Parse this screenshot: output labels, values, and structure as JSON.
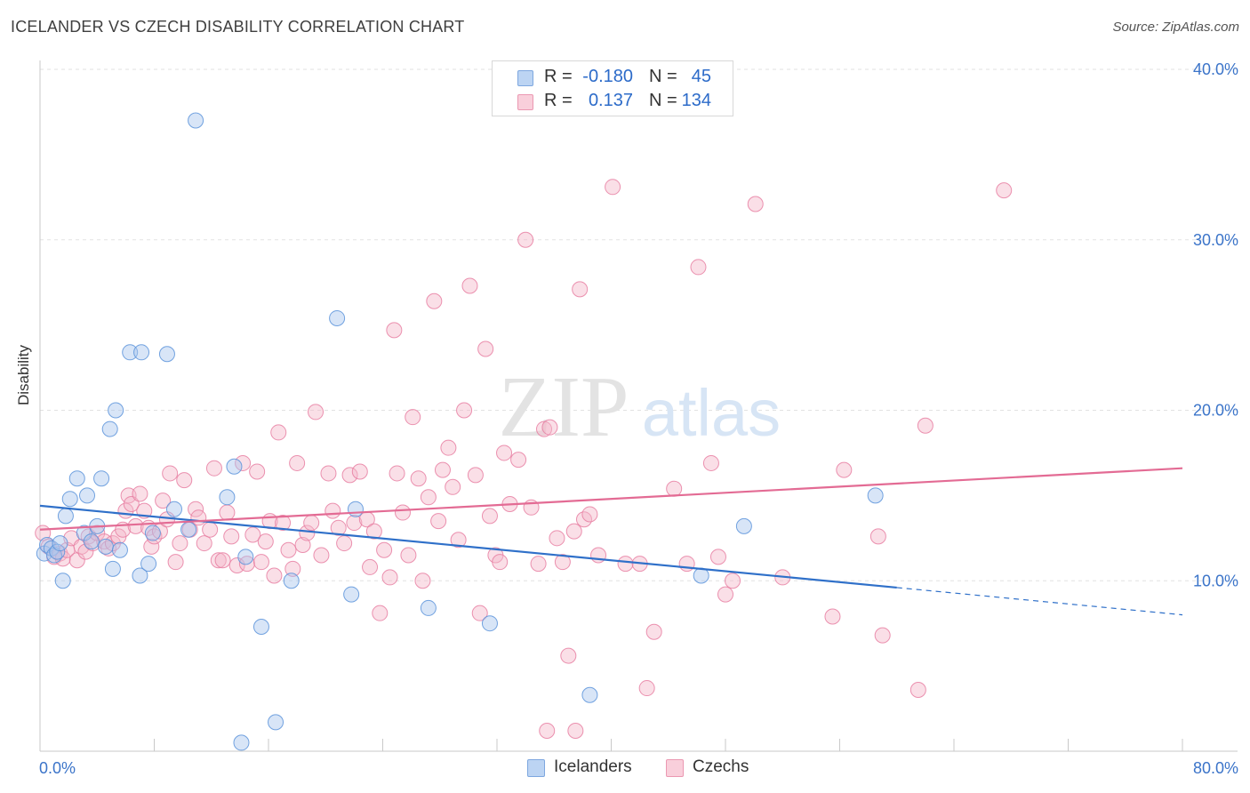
{
  "title": "ICELANDER VS CZECH DISABILITY CORRELATION CHART",
  "source": "Source: ZipAtlas.com",
  "watermark": {
    "zip": "ZIP",
    "atlas": "atlas"
  },
  "legend_top": {
    "rows": [
      {
        "r_label": "R =",
        "r_value": "-0.180",
        "n_label": "N =",
        "n_value": "45",
        "color": "#a9c6ee"
      },
      {
        "r_label": "R =",
        "r_value": "0.137",
        "n_label": "N =",
        "n_value": "134",
        "color": "#f5b8ca"
      }
    ]
  },
  "legend_bottom": [
    {
      "label": "Icelanders",
      "color": "#a9c6ee"
    },
    {
      "label": "Czechs",
      "color": "#f5b8ca"
    }
  ],
  "chart_data": {
    "type": "scatter",
    "title": "ICELANDER VS CZECH DISABILITY CORRELATION CHART",
    "xlabel": "",
    "ylabel": "Disability",
    "xlim": [
      0,
      80
    ],
    "ylim": [
      0,
      40
    ],
    "x_tick_labels": [
      "0.0%",
      "80.0%"
    ],
    "y_tick_labels": [
      "10.0%",
      "20.0%",
      "30.0%",
      "40.0%"
    ],
    "y_ticks": [
      10,
      20,
      30,
      40
    ],
    "grid": true,
    "legend_position": "top-center",
    "series": [
      {
        "name": "Icelanders",
        "color": "#5b93db",
        "fill": "#a9c6ee",
        "trend_color": "#2f70c9",
        "r": -0.18,
        "n": 45,
        "trend": {
          "x_start": 0,
          "y_start": 14.4,
          "x_end": 60,
          "y_end": 9.6,
          "dash_to_x": 80,
          "dash_to_y": 8.0
        },
        "points": [
          [
            0.3,
            11.6
          ],
          [
            0.5,
            12.1
          ],
          [
            0.8,
            11.9
          ],
          [
            1.0,
            11.5
          ],
          [
            1.2,
            11.7
          ],
          [
            1.4,
            12.2
          ],
          [
            1.6,
            10.0
          ],
          [
            1.8,
            13.8
          ],
          [
            2.1,
            14.8
          ],
          [
            2.6,
            16.0
          ],
          [
            3.1,
            12.8
          ],
          [
            3.3,
            15.0
          ],
          [
            3.6,
            12.3
          ],
          [
            4.0,
            13.2
          ],
          [
            4.3,
            16.0
          ],
          [
            4.6,
            12.0
          ],
          [
            4.9,
            18.9
          ],
          [
            5.1,
            10.7
          ],
          [
            5.3,
            20.0
          ],
          [
            5.6,
            11.8
          ],
          [
            6.3,
            23.4
          ],
          [
            7.0,
            10.3
          ],
          [
            7.1,
            23.4
          ],
          [
            7.6,
            11.0
          ],
          [
            7.9,
            12.8
          ],
          [
            8.9,
            23.3
          ],
          [
            9.4,
            14.2
          ],
          [
            10.4,
            13.0
          ],
          [
            10.9,
            37.0
          ],
          [
            13.1,
            14.9
          ],
          [
            13.6,
            16.7
          ],
          [
            14.1,
            0.5
          ],
          [
            14.4,
            11.4
          ],
          [
            15.5,
            7.3
          ],
          [
            16.5,
            1.7
          ],
          [
            17.6,
            10.0
          ],
          [
            20.8,
            25.4
          ],
          [
            21.8,
            9.2
          ],
          [
            22.1,
            14.2
          ],
          [
            27.2,
            8.4
          ],
          [
            31.5,
            7.5
          ],
          [
            38.5,
            3.3
          ],
          [
            46.3,
            10.3
          ],
          [
            49.3,
            13.2
          ],
          [
            58.5,
            15.0
          ]
        ]
      },
      {
        "name": "Czechs",
        "color": "#e87fa2",
        "fill": "#f5b8ca",
        "trend_color": "#e36b94",
        "r": 0.137,
        "n": 134,
        "trend": {
          "x_start": 0,
          "y_start": 13.0,
          "x_end": 80,
          "y_end": 16.6
        },
        "points": [
          [
            0.2,
            12.8
          ],
          [
            0.6,
            12.0
          ],
          [
            1.0,
            11.4
          ],
          [
            1.4,
            11.6
          ],
          [
            1.6,
            11.3
          ],
          [
            1.9,
            11.8
          ],
          [
            2.2,
            12.5
          ],
          [
            2.6,
            11.2
          ],
          [
            2.9,
            12.0
          ],
          [
            3.2,
            11.7
          ],
          [
            3.4,
            12.6
          ],
          [
            3.7,
            12.2
          ],
          [
            4.0,
            12.8
          ],
          [
            4.5,
            12.3
          ],
          [
            4.8,
            11.9
          ],
          [
            5.1,
            12.2
          ],
          [
            5.5,
            12.6
          ],
          [
            5.8,
            13.0
          ],
          [
            6.0,
            14.1
          ],
          [
            6.2,
            15.0
          ],
          [
            6.4,
            14.5
          ],
          [
            6.7,
            13.2
          ],
          [
            7.0,
            15.1
          ],
          [
            7.3,
            14.1
          ],
          [
            7.6,
            13.1
          ],
          [
            7.8,
            12.0
          ],
          [
            8.0,
            12.6
          ],
          [
            8.4,
            12.9
          ],
          [
            8.6,
            14.7
          ],
          [
            8.9,
            13.6
          ],
          [
            9.1,
            16.3
          ],
          [
            9.5,
            11.1
          ],
          [
            9.8,
            12.2
          ],
          [
            10.1,
            15.9
          ],
          [
            10.5,
            13.0
          ],
          [
            10.9,
            14.2
          ],
          [
            11.1,
            13.7
          ],
          [
            11.5,
            12.2
          ],
          [
            11.9,
            13.0
          ],
          [
            12.2,
            16.6
          ],
          [
            12.5,
            11.2
          ],
          [
            12.8,
            11.2
          ],
          [
            13.1,
            14.0
          ],
          [
            13.4,
            12.6
          ],
          [
            13.8,
            10.9
          ],
          [
            14.2,
            16.9
          ],
          [
            14.5,
            11.0
          ],
          [
            14.9,
            12.7
          ],
          [
            15.2,
            16.4
          ],
          [
            15.5,
            11.1
          ],
          [
            15.8,
            12.3
          ],
          [
            16.1,
            13.5
          ],
          [
            16.4,
            10.3
          ],
          [
            16.7,
            18.7
          ],
          [
            17.0,
            13.4
          ],
          [
            17.4,
            11.8
          ],
          [
            17.7,
            10.7
          ],
          [
            18.0,
            16.9
          ],
          [
            18.4,
            12.1
          ],
          [
            18.7,
            12.8
          ],
          [
            19.0,
            13.4
          ],
          [
            19.3,
            19.9
          ],
          [
            19.7,
            11.5
          ],
          [
            20.2,
            16.3
          ],
          [
            20.5,
            14.1
          ],
          [
            20.9,
            13.1
          ],
          [
            21.3,
            12.2
          ],
          [
            21.7,
            16.2
          ],
          [
            22.0,
            13.4
          ],
          [
            22.4,
            16.4
          ],
          [
            22.9,
            13.6
          ],
          [
            23.1,
            10.8
          ],
          [
            23.4,
            12.9
          ],
          [
            23.8,
            8.1
          ],
          [
            24.1,
            11.8
          ],
          [
            24.5,
            10.2
          ],
          [
            24.8,
            24.7
          ],
          [
            25.0,
            16.3
          ],
          [
            25.4,
            14.0
          ],
          [
            25.8,
            11.5
          ],
          [
            26.1,
            19.6
          ],
          [
            26.5,
            16.0
          ],
          [
            26.8,
            10.0
          ],
          [
            27.2,
            14.9
          ],
          [
            27.6,
            26.4
          ],
          [
            27.9,
            13.5
          ],
          [
            28.2,
            16.5
          ],
          [
            28.6,
            17.8
          ],
          [
            28.9,
            15.5
          ],
          [
            29.3,
            12.4
          ],
          [
            29.7,
            20.0
          ],
          [
            30.1,
            27.3
          ],
          [
            30.5,
            16.2
          ],
          [
            30.8,
            8.1
          ],
          [
            31.2,
            23.6
          ],
          [
            31.5,
            13.8
          ],
          [
            31.9,
            11.5
          ],
          [
            32.2,
            11.1
          ],
          [
            32.5,
            17.5
          ],
          [
            32.9,
            14.5
          ],
          [
            33.5,
            17.1
          ],
          [
            34.0,
            30.0
          ],
          [
            34.4,
            14.3
          ],
          [
            34.9,
            11.0
          ],
          [
            35.3,
            18.9
          ],
          [
            35.7,
            19.0
          ],
          [
            36.2,
            12.5
          ],
          [
            36.6,
            11.1
          ],
          [
            37.0,
            5.6
          ],
          [
            37.4,
            12.9
          ],
          [
            37.8,
            27.1
          ],
          [
            38.1,
            13.6
          ],
          [
            38.5,
            13.9
          ],
          [
            39.1,
            11.5
          ],
          [
            40.1,
            33.1
          ],
          [
            41.0,
            11.0
          ],
          [
            42.0,
            11.0
          ],
          [
            42.5,
            3.7
          ],
          [
            43.0,
            7.0
          ],
          [
            44.4,
            15.4
          ],
          [
            45.3,
            11.0
          ],
          [
            46.1,
            28.4
          ],
          [
            47.0,
            16.9
          ],
          [
            47.5,
            11.4
          ],
          [
            48.0,
            9.2
          ],
          [
            48.5,
            10.0
          ],
          [
            50.1,
            32.1
          ],
          [
            52.0,
            10.2
          ],
          [
            55.5,
            7.9
          ],
          [
            56.3,
            16.5
          ],
          [
            58.7,
            12.6
          ],
          [
            59.0,
            6.8
          ],
          [
            61.5,
            3.6
          ],
          [
            62.0,
            19.1
          ],
          [
            67.5,
            32.9
          ],
          [
            35.5,
            1.2
          ],
          [
            37.5,
            1.2
          ]
        ]
      }
    ]
  }
}
